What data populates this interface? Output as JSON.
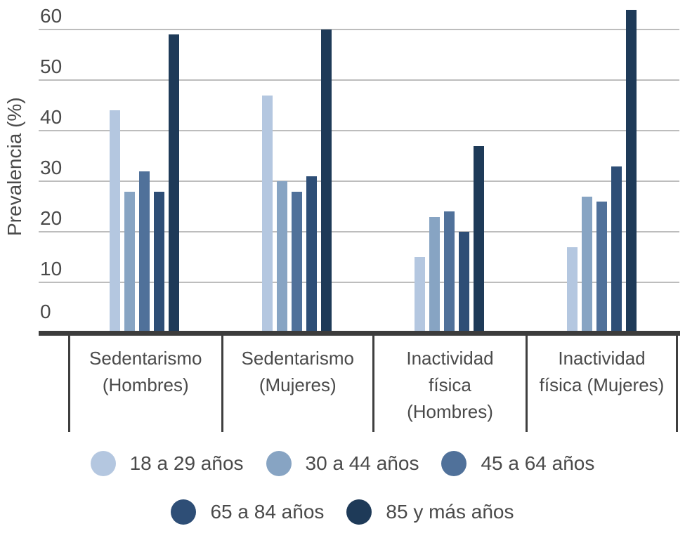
{
  "chart_data": {
    "type": "bar",
    "title": "",
    "xlabel": "",
    "ylabel": "Prevalencia (%)",
    "ylim": [
      0,
      65
    ],
    "yticks": [
      0,
      10,
      20,
      30,
      40,
      50,
      60
    ],
    "grid": true,
    "legend_position": "bottom",
    "categories": [
      {
        "label": "Sedentarismo (Hombres)",
        "lines": [
          "Sedentarismo",
          "(Hombres)"
        ]
      },
      {
        "label": "Sedentarismo (Mujeres)",
        "lines": [
          "Sedentarismo",
          "(Mujeres)"
        ]
      },
      {
        "label": "Inactividad física (Hombres)",
        "lines": [
          "Inactividad",
          "física",
          "(Hombres)"
        ]
      },
      {
        "label": "Inactividad física (Mujeres)",
        "lines": [
          "Inactividad",
          "física (Mujeres)"
        ]
      }
    ],
    "series": [
      {
        "name": "18 a 29 años",
        "color": "#b4c7e0",
        "values": [
          44,
          47,
          15,
          17
        ]
      },
      {
        "name": "30 a 44 años",
        "color": "#87a4c3",
        "values": [
          28,
          30,
          23,
          27
        ]
      },
      {
        "name": "45 a 64 años",
        "color": "#50719a",
        "values": [
          32,
          28,
          24,
          26
        ]
      },
      {
        "name": "65 a 84 años",
        "color": "#2e4e76",
        "values": [
          28,
          31,
          20,
          33
        ]
      },
      {
        "name": "85 y más años",
        "color": "#1e3a58",
        "values": [
          59,
          60,
          37,
          64
        ]
      }
    ],
    "legend_rows": [
      [
        0,
        1,
        2
      ],
      [
        3,
        4
      ]
    ]
  },
  "colors": {
    "text": "#4a4a4a",
    "gridline": "#bdbdbd",
    "axis": "#3c3c3c",
    "background": "#ffffff"
  }
}
